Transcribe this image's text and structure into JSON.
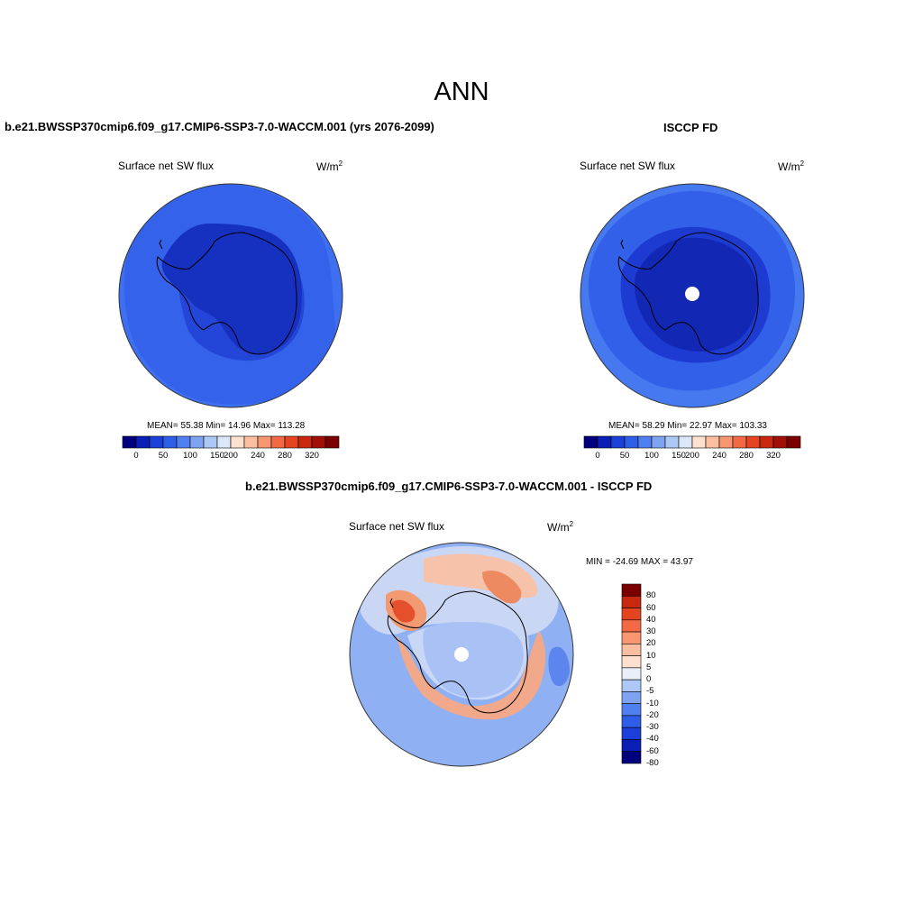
{
  "season": "ANN",
  "units_base": "W/m",
  "units_exp": "2",
  "panels": {
    "test": {
      "title": "b.e21.BWSSP370cmip6.f09_g17.CMIP6-SSP3-7.0-WACCM.001 (yrs 2076-2099)",
      "variable": "Surface net SW flux",
      "stats": "MEAN=  55.38  Min=  14.96  Max= 113.28"
    },
    "ref": {
      "title": "ISCCP FD",
      "variable": "Surface net SW flux",
      "stats": "MEAN=  58.29  Min=  22.97  Max= 103.33"
    },
    "diff": {
      "title": "b.e21.BWSSP370cmip6.f09_g17.CMIP6-SSP3-7.0-WACCM.001 - ISCCP FD",
      "variable": "Surface net SW flux",
      "stats": "MIN = -24.69 MAX =  43.97"
    }
  },
  "colorbar_main": {
    "colors": [
      "#00007f",
      "#0a1fb5",
      "#1b3fd9",
      "#2e5ee8",
      "#5080ef",
      "#7ea3f2",
      "#aec8f5",
      "#dbe6f8",
      "#fde0cf",
      "#fbbea0",
      "#f79670",
      "#f26a45",
      "#e54420",
      "#c92810",
      "#a10f06",
      "#7a0000"
    ],
    "labels": [
      "0",
      "50",
      "100",
      "150",
      "200",
      "240",
      "280",
      "320"
    ]
  },
  "colorbar_diff": {
    "colors": [
      "#00007f",
      "#0a1fb5",
      "#1b3fd9",
      "#2e5ee8",
      "#5080ef",
      "#7ea3f2",
      "#aec8f5",
      "#e9eef8",
      "#fde0cf",
      "#fbbea0",
      "#f79670",
      "#f26a45",
      "#e54420",
      "#c92810",
      "#7a0000"
    ],
    "labels": [
      "80",
      "60",
      "40",
      "30",
      "20",
      "10",
      "5",
      "0",
      "-5",
      "-10",
      "-20",
      "-30",
      "-40",
      "-60",
      "-80"
    ]
  }
}
